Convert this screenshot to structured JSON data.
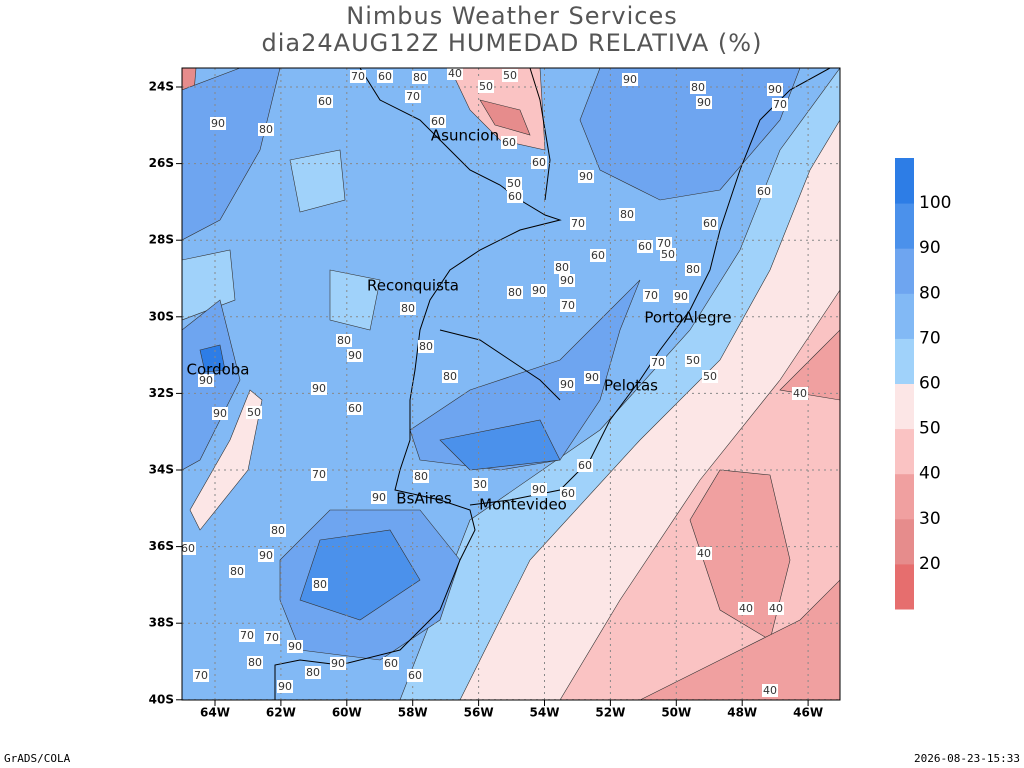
{
  "header": {
    "title": "Nimbus Weather Services",
    "subtitle": "dia24AUG12Z HUMEDAD RELATIVA (%)"
  },
  "map": {
    "lat_labels": [
      "24S",
      "26S",
      "28S",
      "30S",
      "32S",
      "34S",
      "36S",
      "38S",
      "40S"
    ],
    "lon_labels": [
      "64W",
      "62W",
      "60W",
      "58W",
      "56W",
      "54W",
      "52W",
      "50W",
      "48W",
      "46W"
    ],
    "cities": [
      "Asuncion",
      "Reconquista",
      "PortoAlegre",
      "Cordoba",
      "Pelotas",
      "BsAires",
      "Montevideo"
    ],
    "contour_labels": [
      90,
      80,
      90,
      90,
      70,
      50,
      40,
      50,
      60,
      70,
      80,
      60,
      70,
      60,
      80,
      90,
      60,
      60,
      50,
      60,
      90,
      60,
      80,
      70,
      60,
      60,
      60,
      70,
      50,
      80,
      70,
      90,
      80,
      90,
      70,
      80,
      90,
      80,
      80,
      90,
      90,
      60,
      50,
      90,
      90,
      80,
      80,
      90,
      90,
      70,
      50,
      50,
      40,
      60,
      60,
      80,
      70,
      90,
      30,
      90,
      80,
      90,
      80,
      80,
      40,
      40,
      40,
      40,
      60,
      60,
      90,
      90,
      70,
      70,
      80,
      80,
      90,
      70,
      60
    ]
  },
  "colorbar": {
    "colors": [
      "#e66e6e",
      "#e68c8c",
      "#f0a0a0",
      "#fac3c3",
      "#fce6e6",
      "#a0d2fa",
      "#82b9f5",
      "#6ea5f0",
      "#4b91eb",
      "#2d7de6"
    ],
    "labels": [
      20,
      30,
      40,
      50,
      60,
      70,
      80,
      90,
      100
    ]
  },
  "footer": {
    "left": "GrADS/COLA",
    "right": "2026-08-23-15:33"
  }
}
